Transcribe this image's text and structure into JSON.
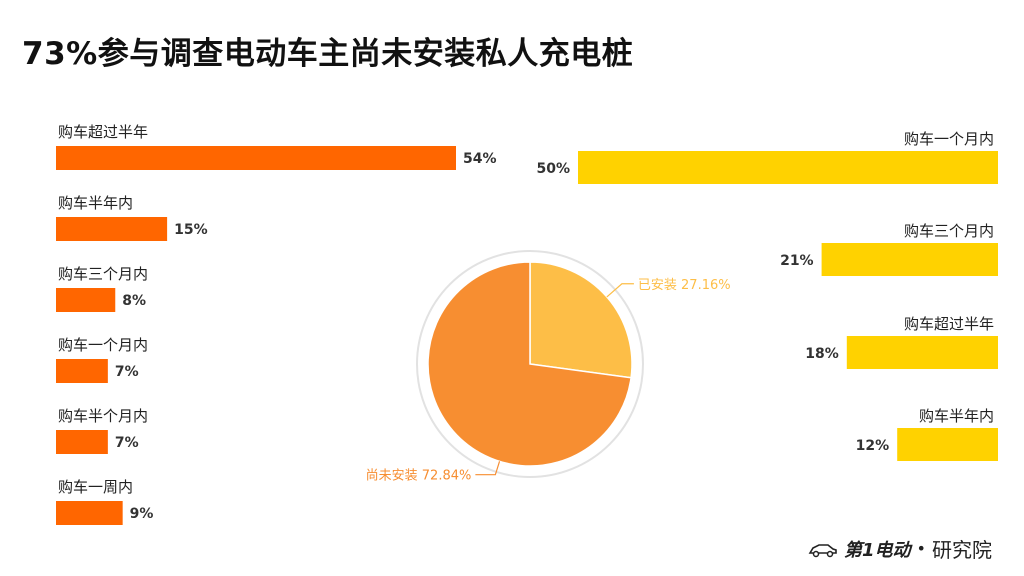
{
  "title": "73%参与调查电动车主尚未安装私人充电桩",
  "brand": {
    "mark": "第1电动",
    "dot": "•",
    "name": "研究院"
  },
  "chart_data": [
    {
      "type": "bar",
      "orientation": "horizontal",
      "color": "#FF6600",
      "categories": [
        "购车超过半年",
        "购车半年内",
        "购车三个月内",
        "购车一个月内",
        "购车半个月内",
        "购车一周内"
      ],
      "values": [
        54,
        15,
        8,
        7,
        7,
        9
      ],
      "value_labels": [
        "54%",
        "15%",
        "8%",
        "7%",
        "7%",
        "9%"
      ]
    },
    {
      "type": "pie",
      "colors": [
        "#F78E31",
        "#FDBE47"
      ],
      "slices": [
        {
          "label": "尚未安装 72.84%",
          "value": 72.84
        },
        {
          "label": "已安装 27.16%",
          "value": 27.16
        }
      ]
    },
    {
      "type": "bar",
      "orientation": "horizontal",
      "color": "#FFD200",
      "categories": [
        "购车一个月内",
        "购车三个月内",
        "购车超过半年",
        "购车半年内"
      ],
      "values": [
        50,
        21,
        18,
        12
      ],
      "value_labels": [
        "50%",
        "21%",
        "18%",
        "12%"
      ]
    }
  ]
}
